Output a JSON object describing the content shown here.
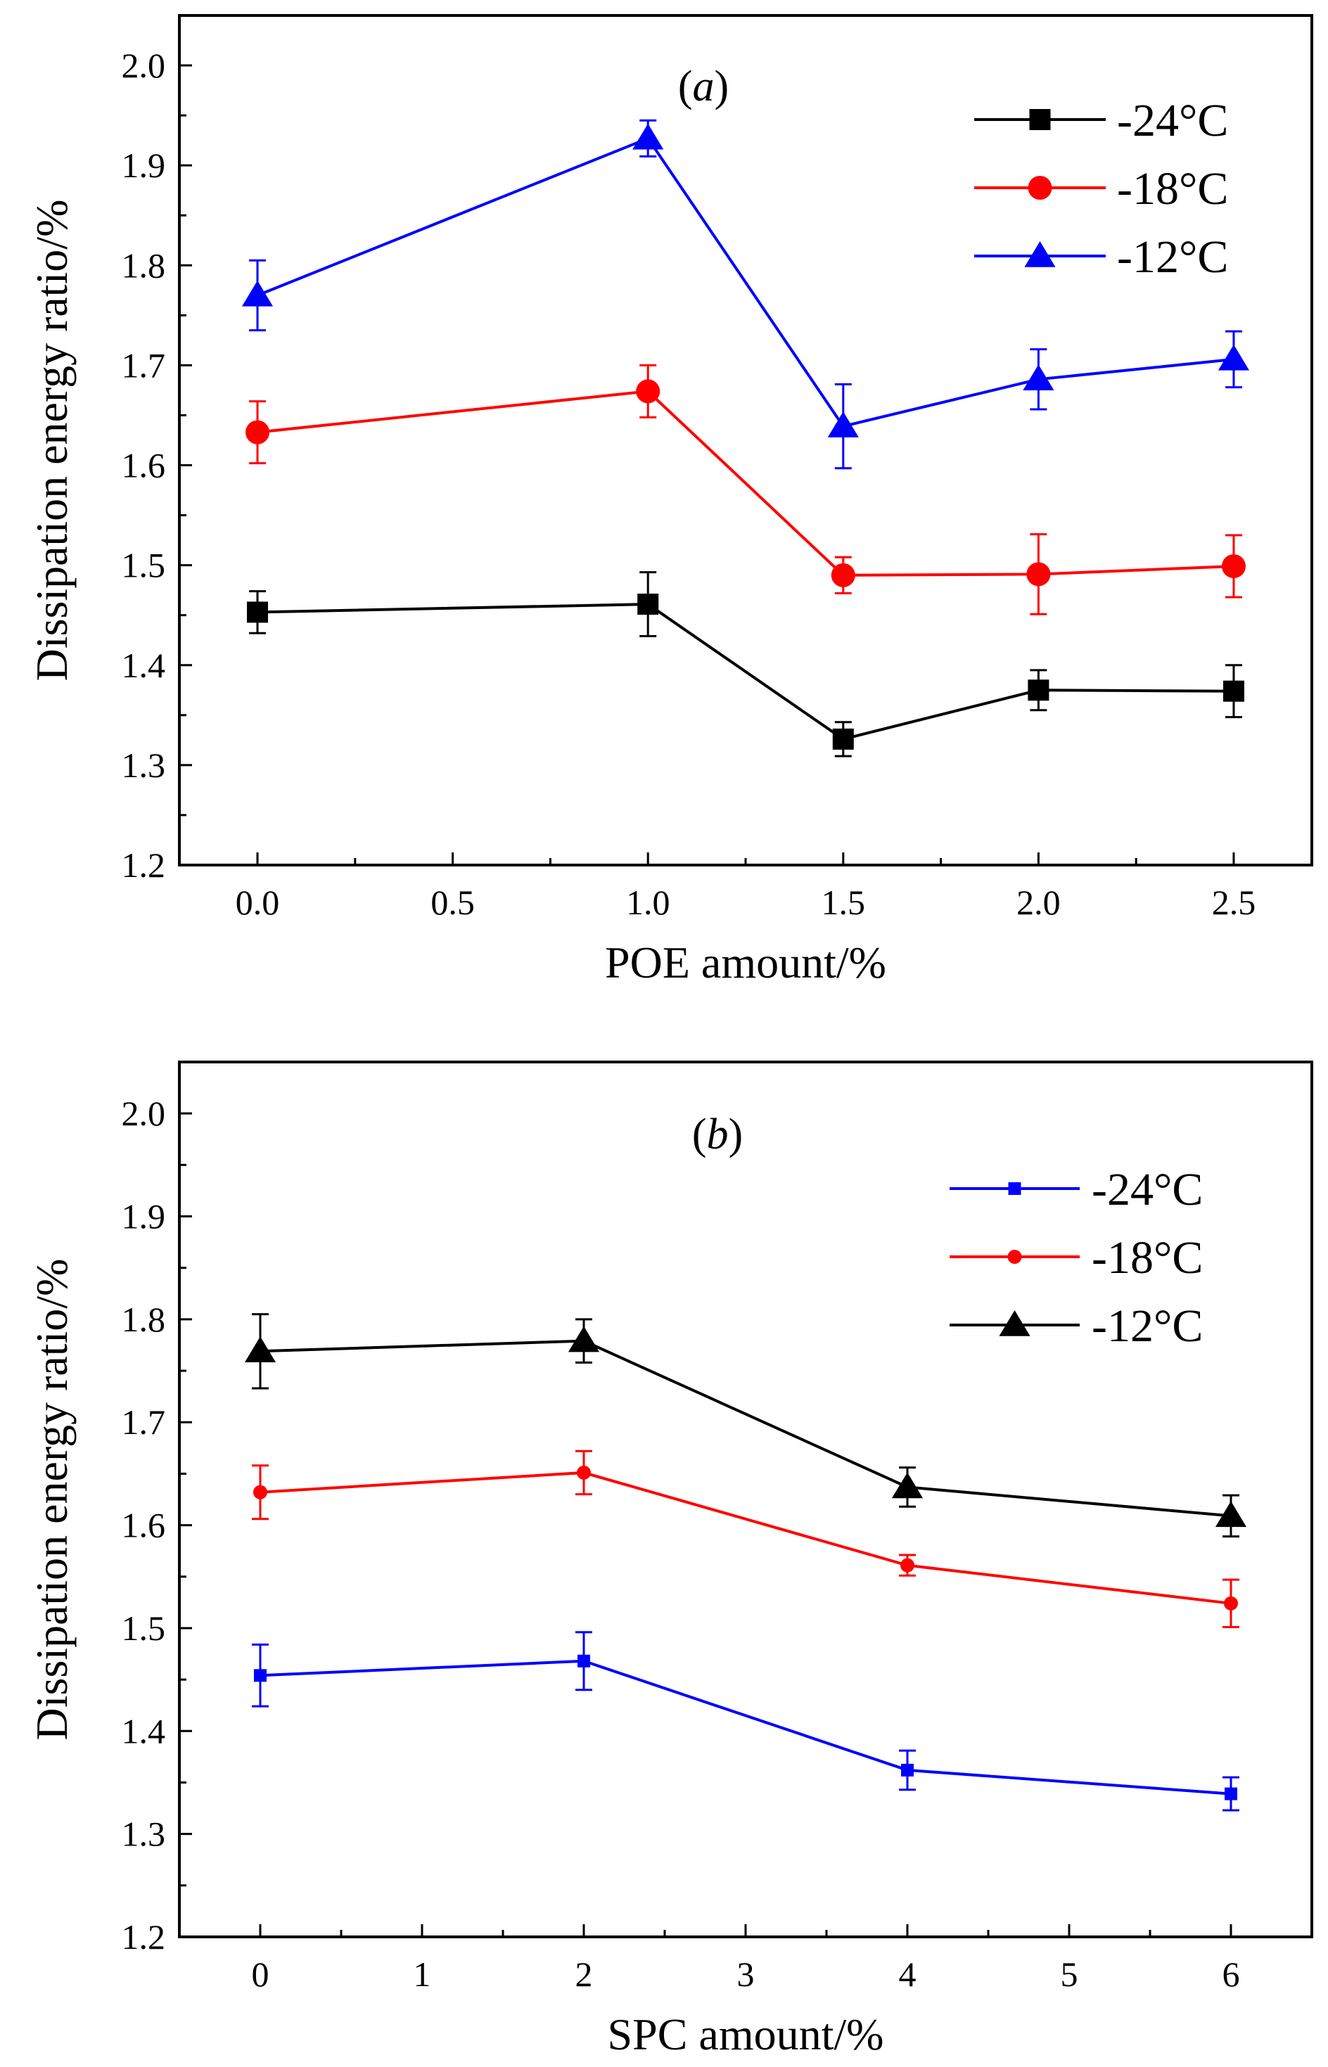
{
  "chart_data": [
    {
      "type": "line",
      "panel_label": "(a)",
      "panel_letter": "a",
      "xlabel": "POE amount/%",
      "ylabel": "Dissipation energy ratio/%",
      "xlim": [
        -0.2,
        2.7
      ],
      "ylim": [
        1.2,
        2.05
      ],
      "xticks": [
        0.0,
        0.5,
        1.0,
        1.5,
        2.0,
        2.5
      ],
      "xtick_labels": [
        "0.0",
        "0.5",
        "1.0",
        "1.5",
        "2.0",
        "2.5"
      ],
      "yticks": [
        1.2,
        1.3,
        1.4,
        1.5,
        1.6,
        1.7,
        1.8,
        1.9,
        2.0
      ],
      "ytick_labels": [
        "1.2",
        "1.3",
        "1.4",
        "1.5",
        "1.6",
        "1.7",
        "1.8",
        "1.9",
        "2.0"
      ],
      "legend_position": "top-right",
      "x": [
        0.0,
        1.0,
        1.5,
        2.0,
        2.5
      ],
      "series": [
        {
          "name": "-24°C",
          "color": "#000000",
          "marker": "square",
          "values": [
            1.453,
            1.461,
            1.326,
            1.375,
            1.374
          ],
          "errors": [
            0.021,
            0.032,
            0.017,
            0.02,
            0.026
          ]
        },
        {
          "name": "-18°C",
          "color": "#ff0000",
          "marker": "circle",
          "values": [
            1.633,
            1.674,
            1.49,
            1.491,
            1.499
          ],
          "errors": [
            0.031,
            0.026,
            0.018,
            0.04,
            0.031
          ]
        },
        {
          "name": "-12°C",
          "color": "#0000ff",
          "marker": "triangle",
          "values": [
            1.77,
            1.927,
            1.639,
            1.686,
            1.706
          ],
          "errors": [
            0.035,
            0.018,
            0.042,
            0.03,
            0.028
          ]
        }
      ]
    },
    {
      "type": "line",
      "panel_label": "(b)",
      "panel_letter": "b",
      "xlabel": "SPC amount/%",
      "ylabel": "Dissipation energy ratio/%",
      "xlim": [
        -0.5,
        6.5
      ],
      "ylim": [
        1.2,
        2.05
      ],
      "xticks": [
        0,
        1,
        2,
        3,
        4,
        5,
        6
      ],
      "xtick_labels": [
        "0",
        "1",
        "2",
        "3",
        "4",
        "5",
        "6"
      ],
      "yticks": [
        1.2,
        1.3,
        1.4,
        1.5,
        1.6,
        1.7,
        1.8,
        1.9,
        2.0
      ],
      "ytick_labels": [
        "1.2",
        "1.3",
        "1.4",
        "1.5",
        "1.6",
        "1.7",
        "1.8",
        "1.9",
        "2.0"
      ],
      "legend_position": "top-right",
      "x": [
        0,
        2,
        4,
        6
      ],
      "series": [
        {
          "name": "-24°C",
          "color": "#0000ff",
          "marker": "small-square",
          "values": [
            1.454,
            1.468,
            1.362,
            1.339
          ],
          "errors": [
            0.03,
            0.028,
            0.019,
            0.016
          ]
        },
        {
          "name": "-18°C",
          "color": "#ff0000",
          "marker": "small-circle",
          "values": [
            1.632,
            1.651,
            1.561,
            1.524
          ],
          "errors": [
            0.026,
            0.021,
            0.01,
            0.023
          ]
        },
        {
          "name": "-12°C",
          "color": "#000000",
          "marker": "triangle",
          "values": [
            1.769,
            1.779,
            1.637,
            1.609
          ],
          "errors": [
            0.036,
            0.021,
            0.019,
            0.02
          ]
        }
      ]
    }
  ]
}
